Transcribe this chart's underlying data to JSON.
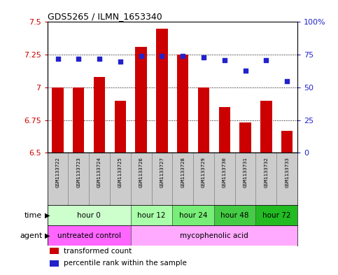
{
  "title": "GDS5265 / ILMN_1653340",
  "samples": [
    "GSM1133722",
    "GSM1133723",
    "GSM1133724",
    "GSM1133725",
    "GSM1133726",
    "GSM1133727",
    "GSM1133728",
    "GSM1133729",
    "GSM1133730",
    "GSM1133731",
    "GSM1133732",
    "GSM1133733"
  ],
  "bar_values": [
    7.0,
    7.0,
    7.08,
    6.9,
    7.31,
    7.45,
    7.25,
    7.0,
    6.85,
    6.73,
    6.9,
    6.67
  ],
  "dot_values": [
    72,
    72,
    72,
    70,
    74,
    74,
    74,
    73,
    71,
    63,
    71,
    55
  ],
  "ylim_left": [
    6.5,
    7.5
  ],
  "ylim_right": [
    0,
    100
  ],
  "yticks_left": [
    6.5,
    6.75,
    7.0,
    7.25,
    7.5
  ],
  "ytick_labels_left": [
    "6.5",
    "6.75",
    "7",
    "7.25",
    "7.5"
  ],
  "yticks_right": [
    0,
    25,
    50,
    75,
    100
  ],
  "ytick_labels_right": [
    "0",
    "25",
    "50",
    "75",
    "100%"
  ],
  "bar_color": "#cc0000",
  "dot_color": "#2222cc",
  "bar_bottom": 6.5,
  "time_groups": [
    {
      "label": "hour 0",
      "start": 0,
      "end": 3,
      "color": "#ccffcc"
    },
    {
      "label": "hour 12",
      "start": 4,
      "end": 5,
      "color": "#aaffaa"
    },
    {
      "label": "hour 24",
      "start": 6,
      "end": 7,
      "color": "#77ee77"
    },
    {
      "label": "hour 48",
      "start": 8,
      "end": 9,
      "color": "#44cc44"
    },
    {
      "label": "hour 72",
      "start": 10,
      "end": 11,
      "color": "#22bb22"
    }
  ],
  "agent_groups": [
    {
      "label": "untreated control",
      "start": 0,
      "end": 3,
      "color": "#ff66ff"
    },
    {
      "label": "mycophenolic acid",
      "start": 4,
      "end": 11,
      "color": "#ffaaff"
    }
  ],
  "legend_items": [
    {
      "label": "transformed count",
      "color": "#cc0000"
    },
    {
      "label": "percentile rank within the sample",
      "color": "#2222cc"
    }
  ],
  "grid_yticks": [
    6.75,
    7.0,
    7.25
  ],
  "sample_box_color": "#cccccc",
  "sample_box_edge": "#888888"
}
